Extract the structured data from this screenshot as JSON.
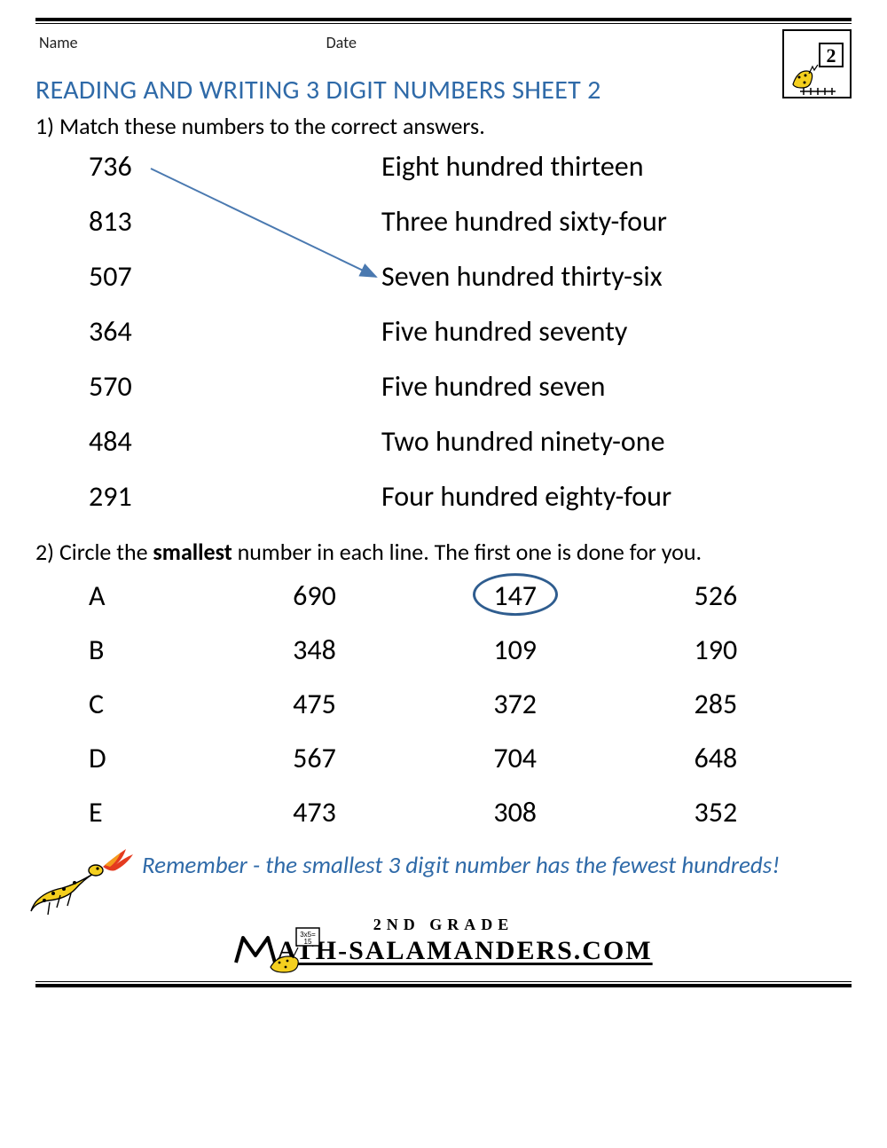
{
  "header": {
    "name_label": "Name",
    "date_label": "Date",
    "logo_number": "2"
  },
  "title": "READING AND WRITING 3 DIGIT NUMBERS SHEET 2",
  "q1": {
    "instruction": "1) Match these numbers to the correct answers.",
    "numbers": [
      "736",
      "813",
      "507",
      "364",
      "570",
      "484",
      "291"
    ],
    "words": [
      "Eight hundred thirteen",
      "Three hundred sixty-four",
      "Seven hundred thirty-six",
      "Five hundred seventy",
      "Five hundred seven",
      "Two hundred ninety-one",
      "Four hundred eighty-four"
    ],
    "arrow": {
      "from_index": 0,
      "to_index": 2,
      "color": "#4a79b0",
      "stroke_width": 2
    }
  },
  "q2": {
    "instruction_pre": "2) Circle the ",
    "instruction_bold": "smallest",
    "instruction_post": " number in each line. The first one is done for you.",
    "rows": [
      {
        "label": "A",
        "values": [
          "690",
          "147",
          "526"
        ],
        "circled_index": 1
      },
      {
        "label": "B",
        "values": [
          "348",
          "109",
          "190"
        ],
        "circled_index": null
      },
      {
        "label": "C",
        "values": [
          "475",
          "372",
          "285"
        ],
        "circled_index": null
      },
      {
        "label": "D",
        "values": [
          "567",
          "704",
          "648"
        ],
        "circled_index": null
      },
      {
        "label": "E",
        "values": [
          "473",
          "308",
          "352"
        ],
        "circled_index": null
      }
    ],
    "circle_color": "#2f5d8f"
  },
  "remember": "Remember - the smallest 3 digit number has the fewest hundreds!",
  "footer": {
    "grade": "2ND GRADE",
    "site": "ATH-SALAMANDERS.COM"
  },
  "colors": {
    "title": "#2f6aa8",
    "text": "#000000",
    "salamander_body": "#f4cf1e",
    "salamander_spots": "#000000",
    "flame1": "#e43b1f",
    "flame2": "#f59a1d"
  }
}
